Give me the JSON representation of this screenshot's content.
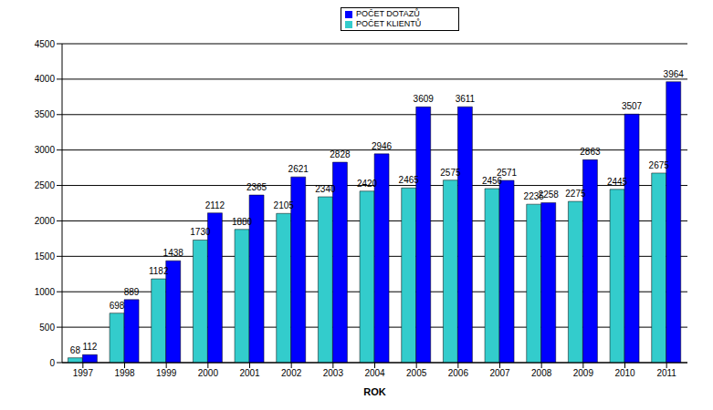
{
  "chart_data": {
    "type": "bar",
    "x_label": "ROK",
    "categories": [
      "1997",
      "1998",
      "1999",
      "2000",
      "2001",
      "2002",
      "2003",
      "2004",
      "2005",
      "2006",
      "2007",
      "2008",
      "2009",
      "2010",
      "2011"
    ],
    "series": [
      {
        "name": "POČET KLIENTŮ",
        "color": "#33CCCC",
        "values": [
          68,
          698,
          1182,
          1730,
          1880,
          2105,
          2340,
          2420,
          2465,
          2575,
          2456,
          2235,
          2275,
          2445,
          2675
        ]
      },
      {
        "name": "POČET DOTAZŮ",
        "color": "#0000FF",
        "values": [
          112,
          889,
          1438,
          2112,
          2365,
          2621,
          2828,
          2946,
          3609,
          3611,
          2571,
          2258,
          2863,
          3507,
          3964
        ]
      }
    ],
    "ylim": [
      0,
      4500
    ],
    "yticks": [
      0,
      500,
      1000,
      1500,
      2000,
      2500,
      3000,
      3500,
      4000,
      4500
    ],
    "grid": true,
    "legend": "top",
    "data_labels": true
  }
}
